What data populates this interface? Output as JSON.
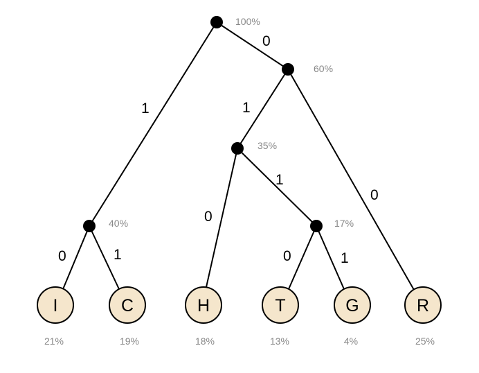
{
  "nodes": {
    "root": {
      "pct": "100%"
    },
    "n60": {
      "pct": "60%"
    },
    "n35": {
      "pct": "35%"
    },
    "n40": {
      "pct": "40%"
    },
    "n17": {
      "pct": "17%"
    }
  },
  "edges": {
    "root_n60": "0",
    "root_n40": "1",
    "n60_n35": "1",
    "n60_R": "0",
    "n35_H": "0",
    "n35_n17": "1",
    "n40_I": "0",
    "n40_C": "1",
    "n17_T": "0",
    "n17_G": "1"
  },
  "leaves": {
    "I": {
      "letter": "I",
      "pct": "21%"
    },
    "C": {
      "letter": "C",
      "pct": "19%"
    },
    "H": {
      "letter": "H",
      "pct": "18%"
    },
    "T": {
      "letter": "T",
      "pct": "13%"
    },
    "G": {
      "letter": "G",
      "pct": "4%"
    },
    "R": {
      "letter": "R",
      "pct": "25%"
    }
  },
  "colors": {
    "leaf_fill": "#f5e6cc",
    "pct_text": "#888888"
  }
}
